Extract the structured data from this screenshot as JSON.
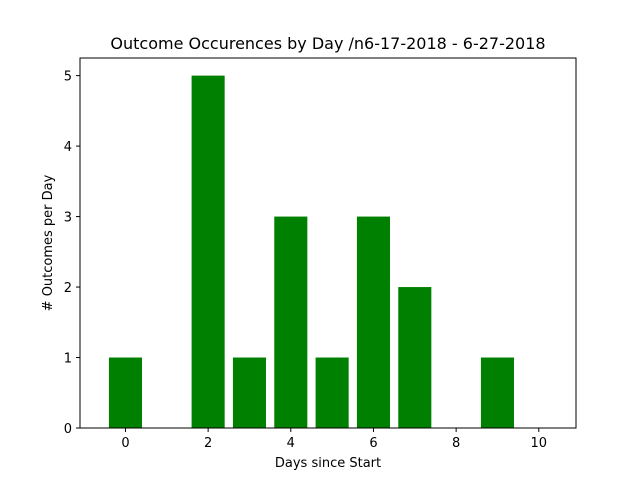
{
  "chart_data": {
    "type": "bar",
    "title": "Outcome Occurences by Day /n6-17-2018 - 6-27-2018",
    "xlabel": "Days since Start",
    "ylabel": "# Outcomes per Day",
    "x": [
      0,
      2,
      3,
      4,
      5,
      6,
      7,
      9
    ],
    "values": [
      1,
      5,
      1,
      3,
      1,
      3,
      2,
      1
    ],
    "xlim": [
      -1.1,
      10.9
    ],
    "ylim": [
      0,
      5.25
    ],
    "xticks": [
      0,
      2,
      4,
      6,
      8,
      10
    ],
    "yticks": [
      0,
      1,
      2,
      3,
      4,
      5
    ],
    "bar_color": "#008000",
    "grid": false,
    "legend": "none"
  }
}
